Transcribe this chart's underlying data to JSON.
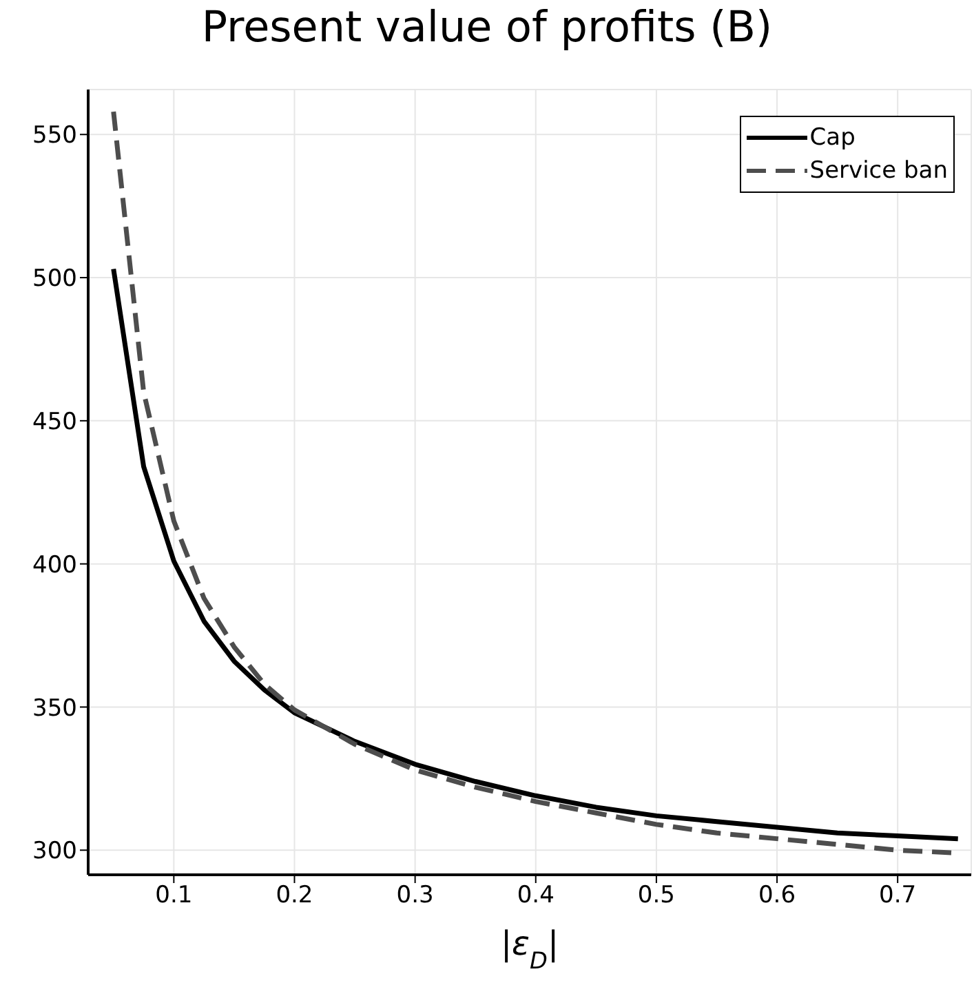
{
  "chart_data": {
    "type": "line",
    "title": "Present value of profits (B)",
    "xlabel": "|ε$_{D}$|",
    "x": [
      0.05,
      0.075,
      0.1,
      0.125,
      0.15,
      0.175,
      0.2,
      0.25,
      0.3,
      0.35,
      0.4,
      0.45,
      0.5,
      0.55,
      0.6,
      0.65,
      0.7,
      0.75
    ],
    "series": [
      {
        "name": "Cap",
        "color": "#000000",
        "line_style": "solid",
        "values": [
          503,
          434,
          401,
          380,
          366,
          356,
          348,
          338,
          330,
          324,
          319,
          315,
          312,
          310,
          308,
          306,
          305,
          304
        ]
      },
      {
        "name": "Service ban",
        "color": "#4d4d4d",
        "line_style": "dashed",
        "values": [
          558,
          460,
          415,
          388,
          371,
          358,
          349,
          337,
          328,
          322,
          317,
          313,
          309,
          306,
          304,
          302,
          300,
          299
        ]
      }
    ],
    "xlim": [
      0.029,
      0.761
    ],
    "xticks": [
      0.1,
      0.2,
      0.3,
      0.4,
      0.5,
      0.6,
      0.7
    ],
    "ylim": [
      291.4,
      565.7
    ],
    "yticks": [
      300,
      350,
      400,
      450,
      500,
      550
    ],
    "grid": true,
    "legend": "top right"
  }
}
